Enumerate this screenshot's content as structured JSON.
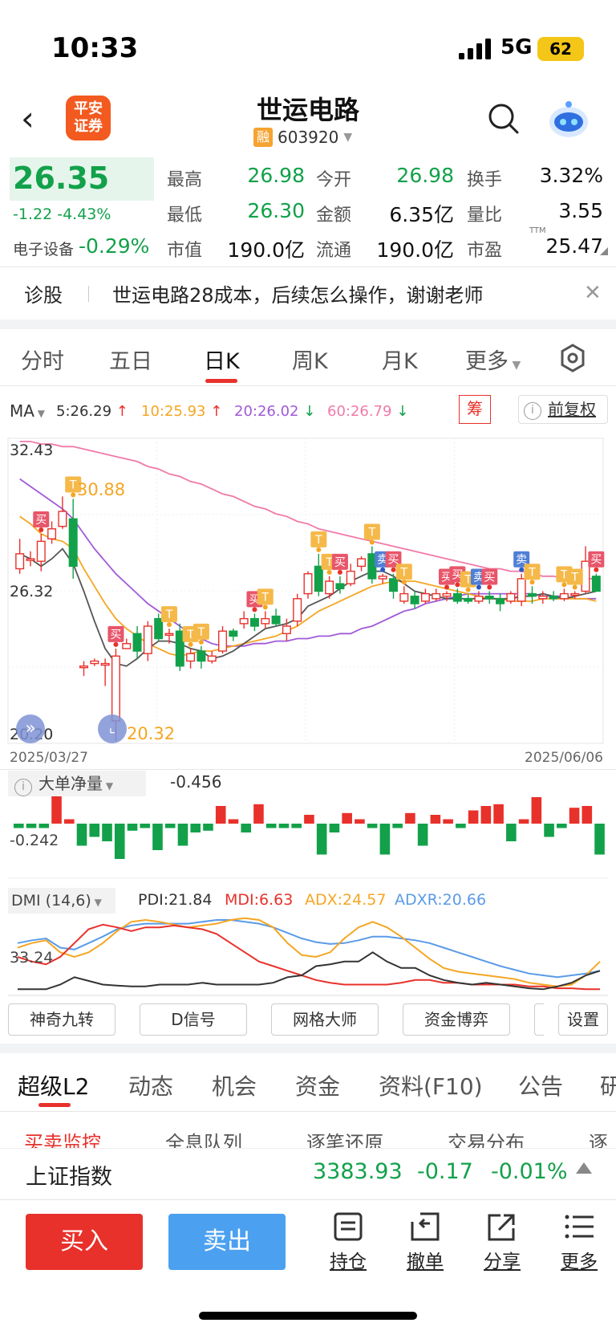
{
  "status": {
    "time": "10:33",
    "network": "5G",
    "battery": "62"
  },
  "header": {
    "broker_logo": "平安\n证券",
    "title": "世运电路",
    "rong": "融",
    "code": "603920"
  },
  "quote": {
    "price": "26.35",
    "change": "-1.22",
    "change_pct": "-4.43%",
    "sector_label": "电子设备",
    "sector_pct": "-0.29%",
    "fields": [
      {
        "label": "最高",
        "value": "26.98",
        "color": "green"
      },
      {
        "label": "今开",
        "value": "26.98",
        "color": "green"
      },
      {
        "label": "换手",
        "value": "3.32%",
        "color": "dark"
      },
      {
        "label": "最低",
        "value": "26.30",
        "color": "green"
      },
      {
        "label": "金额",
        "value": "6.35亿",
        "color": "dark"
      },
      {
        "label": "量比",
        "value": "3.55",
        "color": "dark"
      },
      {
        "label": "市值",
        "value": "190.0亿",
        "color": "dark"
      },
      {
        "label": "流通",
        "value": "190.0亿",
        "color": "dark"
      },
      {
        "label": "市盈",
        "value": "25.47",
        "color": "dark"
      }
    ],
    "ttm": "TTM"
  },
  "news": {
    "tag": "诊股",
    "text": "世运电路28成本，后续怎么操作，谢谢老师"
  },
  "tabs": [
    "分时",
    "五日",
    "日K",
    "周K",
    "月K",
    "更多"
  ],
  "ma": {
    "label": "MA",
    "items": [
      {
        "text": "5:26.29",
        "arrow": "↑",
        "color": "#333"
      },
      {
        "text": "10:25.93",
        "arrow": "↑",
        "color": "#f5a623"
      },
      {
        "text": "20:26.02",
        "arrow": "↓",
        "color": "#a05ad8"
      },
      {
        "text": "60:26.79",
        "arrow": "↓",
        "color": "#f07aa8"
      }
    ],
    "chou": "筹",
    "fq": "前复权"
  },
  "chart_data": {
    "type": "candlestick",
    "ymax": "32.43",
    "ymid": "26.32",
    "ymin": "20.20",
    "x_start": "2025/03/27",
    "x_end": "2025/06/06",
    "annotation_high": "30.88",
    "annotation_low": "20.32",
    "colors": {
      "up": "#e8312b",
      "down": "#12a14a"
    },
    "candles": [
      {
        "o": 27.2,
        "c": 27.8,
        "h": 28.4,
        "l": 27.0
      },
      {
        "o": 27.6,
        "c": 27.6,
        "h": 27.9,
        "l": 27.3
      },
      {
        "o": 27.5,
        "c": 28.3,
        "h": 28.6,
        "l": 27.1
      },
      {
        "o": 28.4,
        "c": 28.8,
        "h": 29.1,
        "l": 28.2
      },
      {
        "o": 28.9,
        "c": 29.5,
        "h": 30.1,
        "l": 28.8
      },
      {
        "o": 29.2,
        "c": 27.3,
        "h": 30.0,
        "l": 26.8
      },
      {
        "o": 23.3,
        "c": 23.3,
        "h": 23.5,
        "l": 22.9
      },
      {
        "o": 23.4,
        "c": 23.5,
        "h": 23.6,
        "l": 23.3
      },
      {
        "o": 23.4,
        "c": 23.4,
        "h": 23.6,
        "l": 22.5
      },
      {
        "o": 21.1,
        "c": 23.7,
        "h": 24.0,
        "l": 20.3
      },
      {
        "o": 24.0,
        "c": 24.2,
        "h": 24.4,
        "l": 24.0
      },
      {
        "o": 24.6,
        "c": 23.9,
        "h": 24.9,
        "l": 23.6
      },
      {
        "o": 23.8,
        "c": 24.9,
        "h": 25.1,
        "l": 23.5
      },
      {
        "o": 25.2,
        "c": 24.4,
        "h": 25.4,
        "l": 24.3
      },
      {
        "o": 24.6,
        "c": 24.6,
        "h": 24.8,
        "l": 24.2
      },
      {
        "o": 24.7,
        "c": 23.3,
        "h": 25.0,
        "l": 23.1
      },
      {
        "o": 23.5,
        "c": 23.8,
        "h": 24.0,
        "l": 23.2
      },
      {
        "o": 23.9,
        "c": 23.5,
        "h": 24.1,
        "l": 23.2
      },
      {
        "o": 23.5,
        "c": 23.7,
        "h": 23.9,
        "l": 23.4
      },
      {
        "o": 23.9,
        "c": 24.7,
        "h": 24.9,
        "l": 23.8
      },
      {
        "o": 24.7,
        "c": 24.5,
        "h": 24.8,
        "l": 24.3
      },
      {
        "o": 25.0,
        "c": 25.2,
        "h": 25.5,
        "l": 24.8
      },
      {
        "o": 25.2,
        "c": 24.9,
        "h": 25.4,
        "l": 24.7
      },
      {
        "o": 25.0,
        "c": 25.2,
        "h": 25.5,
        "l": 24.8
      },
      {
        "o": 25.3,
        "c": 25.0,
        "h": 25.6,
        "l": 24.9
      },
      {
        "o": 24.6,
        "c": 24.9,
        "h": 25.2,
        "l": 24.3
      },
      {
        "o": 25.1,
        "c": 26.0,
        "h": 26.2,
        "l": 24.9
      },
      {
        "o": 26.2,
        "c": 27.0,
        "h": 27.1,
        "l": 26.0
      },
      {
        "o": 27.3,
        "c": 26.3,
        "h": 27.8,
        "l": 26.1
      },
      {
        "o": 26.2,
        "c": 26.7,
        "h": 26.9,
        "l": 26.0
      },
      {
        "o": 26.6,
        "c": 26.4,
        "h": 26.9,
        "l": 26.2
      },
      {
        "o": 26.6,
        "c": 27.1,
        "h": 27.4,
        "l": 26.5
      },
      {
        "o": 27.3,
        "c": 27.6,
        "h": 27.7,
        "l": 27.1
      },
      {
        "o": 27.8,
        "c": 26.8,
        "h": 28.1,
        "l": 26.6
      },
      {
        "o": 26.8,
        "c": 26.9,
        "h": 27.0,
        "l": 26.6
      },
      {
        "o": 26.8,
        "c": 26.3,
        "h": 27.0,
        "l": 26.0
      },
      {
        "o": 25.9,
        "c": 26.2,
        "h": 26.5,
        "l": 25.8
      },
      {
        "o": 26.1,
        "c": 25.8,
        "h": 26.3,
        "l": 25.6
      },
      {
        "o": 25.9,
        "c": 26.2,
        "h": 26.4,
        "l": 25.8
      },
      {
        "o": 26.0,
        "c": 26.2,
        "h": 26.4,
        "l": 25.9
      },
      {
        "o": 26.1,
        "c": 26.2,
        "h": 26.3,
        "l": 25.9
      },
      {
        "o": 26.2,
        "c": 25.9,
        "h": 26.4,
        "l": 25.8
      },
      {
        "o": 26.0,
        "c": 25.9,
        "h": 26.2,
        "l": 25.8
      },
      {
        "o": 25.9,
        "c": 26.1,
        "h": 26.3,
        "l": 25.8
      },
      {
        "o": 26.1,
        "c": 26.0,
        "h": 26.3,
        "l": 25.8
      },
      {
        "o": 26.0,
        "c": 25.8,
        "h": 26.2,
        "l": 25.5
      },
      {
        "o": 25.9,
        "c": 26.2,
        "h": 26.3,
        "l": 25.8
      },
      {
        "o": 25.9,
        "c": 26.8,
        "h": 27.0,
        "l": 25.7
      },
      {
        "o": 26.2,
        "c": 26.1,
        "h": 26.5,
        "l": 25.8
      },
      {
        "o": 26.0,
        "c": 26.1,
        "h": 26.3,
        "l": 25.8
      },
      {
        "o": 26.1,
        "c": 26.0,
        "h": 26.3,
        "l": 25.9
      },
      {
        "o": 26.0,
        "c": 26.2,
        "h": 26.4,
        "l": 25.9
      },
      {
        "o": 26.2,
        "c": 26.2,
        "h": 26.3,
        "l": 26.0
      },
      {
        "o": 26.3,
        "c": 27.5,
        "h": 28.1,
        "l": 26.2
      },
      {
        "o": 26.9,
        "c": 26.3,
        "h": 27.0,
        "l": 26.3
      }
    ],
    "ma5": [
      27.8,
      27.6,
      27.3,
      27.6,
      28.0,
      27.4,
      26.3,
      25.1,
      24.0,
      23.4,
      23.3,
      23.6,
      24.0,
      24.3,
      24.3,
      24.2,
      24.0,
      23.9,
      23.6,
      23.7,
      23.9,
      24.2,
      24.5,
      24.8,
      24.9,
      25.0,
      25.2,
      25.7,
      25.9,
      26.1,
      26.4,
      26.7,
      26.9,
      27.1,
      27.1,
      26.9,
      26.6,
      26.3,
      26.2,
      26.1,
      26.0,
      26.0,
      26.0,
      26.0,
      26.0,
      26.0,
      26.0,
      26.1,
      26.1,
      26.2,
      26.1,
      26.0,
      26.1,
      26.2,
      26.3
    ],
    "ma10": [
      29.3,
      29.0,
      28.6,
      28.4,
      28.3,
      28.0,
      27.2,
      26.5,
      25.8,
      25.2,
      24.8,
      24.5,
      24.2,
      24.0,
      23.8,
      23.7,
      23.8,
      23.9,
      23.9,
      24.0,
      24.1,
      24.2,
      24.3,
      24.4,
      24.5,
      24.7,
      24.9,
      25.2,
      25.5,
      25.7,
      25.9,
      26.1,
      26.3,
      26.5,
      26.6,
      26.7,
      26.7,
      26.7,
      26.6,
      26.5,
      26.4,
      26.3,
      26.2,
      26.1,
      26.0,
      26.0,
      25.9,
      25.9,
      25.9,
      26.0,
      26.0,
      26.0,
      26.0,
      26.0,
      25.9
    ],
    "ma20": [
      30.8,
      30.5,
      30.2,
      29.9,
      29.6,
      29.2,
      28.6,
      28.0,
      27.5,
      27.0,
      26.6,
      26.2,
      25.8,
      25.5,
      25.2,
      24.9,
      24.6,
      24.4,
      24.2,
      24.1,
      24.1,
      24.1,
      24.2,
      24.2,
      24.3,
      24.3,
      24.4,
      24.4,
      24.5,
      24.5,
      24.6,
      24.6,
      24.8,
      24.9,
      25.1,
      25.3,
      25.5,
      25.6,
      25.8,
      25.9,
      26.0,
      26.1,
      26.2,
      26.2,
      26.2,
      26.2,
      26.2,
      26.2,
      26.2,
      26.1,
      26.1,
      26.1,
      26.0,
      26.0,
      26.0
    ],
    "ma60": [
      32.3,
      32.3,
      32.2,
      32.2,
      32.1,
      32.1,
      32.0,
      31.9,
      31.8,
      31.7,
      31.6,
      31.5,
      31.3,
      31.2,
      31.0,
      30.9,
      30.7,
      30.6,
      30.4,
      30.2,
      30.1,
      29.9,
      29.7,
      29.6,
      29.4,
      29.3,
      29.1,
      29.0,
      28.8,
      28.7,
      28.6,
      28.5,
      28.4,
      28.3,
      28.2,
      28.1,
      28.0,
      27.9,
      27.8,
      27.7,
      27.6,
      27.5,
      27.4,
      27.3,
      27.2,
      27.2,
      27.1,
      27.1,
      27.0,
      26.9,
      26.9,
      26.8,
      26.8,
      26.8,
      26.8
    ],
    "signals": [
      {
        "i": 2,
        "text": "买",
        "kind": "buy",
        "at": "above"
      },
      {
        "i": 5,
        "text": "T",
        "kind": "t",
        "at": "above"
      },
      {
        "i": 9,
        "text": "买",
        "kind": "buy",
        "at": "above"
      },
      {
        "i": 14,
        "text": "T",
        "kind": "t",
        "at": "above"
      },
      {
        "i": 16,
        "text": "T",
        "kind": "t",
        "at": "above"
      },
      {
        "i": 17,
        "text": "T",
        "kind": "t",
        "at": "above"
      },
      {
        "i": 22,
        "text": "买",
        "kind": "buy",
        "at": "above"
      },
      {
        "i": 23,
        "text": "T",
        "kind": "t",
        "at": "above"
      },
      {
        "i": 28,
        "text": "T",
        "kind": "t",
        "at": "above"
      },
      {
        "i": 29,
        "text": "T",
        "kind": "t",
        "at": "above"
      },
      {
        "i": 30,
        "text": "买",
        "kind": "buy",
        "at": "above"
      },
      {
        "i": 33,
        "text": "T",
        "kind": "t",
        "at": "above"
      },
      {
        "i": 34,
        "text": "卖",
        "kind": "sell",
        "at": "above"
      },
      {
        "i": 35,
        "text": "买",
        "kind": "buy",
        "at": "above"
      },
      {
        "i": 36,
        "text": "T",
        "kind": "t",
        "at": "above"
      },
      {
        "i": 40,
        "text": "买",
        "kind": "buy",
        "at": "above"
      },
      {
        "i": 41,
        "text": "买",
        "kind": "buy",
        "at": "above"
      },
      {
        "i": 42,
        "text": "T",
        "kind": "t",
        "at": "above"
      },
      {
        "i": 43,
        "text": "卖",
        "kind": "sell",
        "at": "above"
      },
      {
        "i": 44,
        "text": "买",
        "kind": "buy",
        "at": "above"
      },
      {
        "i": 47,
        "text": "卖",
        "kind": "sell",
        "at": "above"
      },
      {
        "i": 48,
        "text": "T",
        "kind": "t",
        "at": "above"
      },
      {
        "i": 51,
        "text": "T",
        "kind": "t",
        "at": "above"
      },
      {
        "i": 52,
        "text": "T",
        "kind": "t",
        "at": "above"
      },
      {
        "i": 54,
        "text": "买",
        "kind": "buy",
        "at": "above"
      }
    ]
  },
  "big_order": {
    "label": "大单净量",
    "value": "-0.456",
    "axis": "-0.242",
    "bars": [
      -0.05,
      -0.05,
      -0.05,
      0.34,
      0.05,
      -0.25,
      -0.15,
      -0.2,
      -0.4,
      -0.08,
      -0.05,
      -0.3,
      -0.05,
      -0.25,
      -0.1,
      -0.08,
      0.2,
      0.05,
      -0.1,
      0.22,
      -0.05,
      -0.05,
      -0.05,
      0.1,
      -0.35,
      -0.1,
      0.12,
      0.05,
      -0.05,
      -0.35,
      -0.05,
      0.12,
      -0.25,
      0.1,
      0.05,
      -0.05,
      0.15,
      0.2,
      0.22,
      -0.2,
      0.05,
      0.3,
      -0.15,
      -0.05,
      0.18,
      0.2,
      -0.35
    ]
  },
  "dmi": {
    "label": "DMI (14,6)",
    "pdi": "PDI:21.84",
    "mdi": "MDI:6.63",
    "adx": "ADX:24.57",
    "adxr": "ADXR:20.66",
    "axis": "33.24",
    "series": {
      "PDI": [
        5,
        5,
        5,
        10,
        18,
        14,
        10,
        9,
        8,
        8,
        10,
        10,
        10,
        12,
        10,
        10,
        10,
        10,
        12,
        18,
        20,
        30,
        32,
        35,
        35,
        45,
        35,
        28,
        28,
        20,
        15,
        12,
        10,
        12,
        10,
        8,
        6,
        5,
        8,
        12,
        20,
        25
      ],
      "MDI": [
        40,
        35,
        32,
        40,
        55,
        70,
        75,
        72,
        68,
        72,
        72,
        74,
        72,
        70,
        65,
        55,
        45,
        35,
        30,
        25,
        20,
        15,
        12,
        10,
        10,
        10,
        10,
        12,
        15,
        15,
        12,
        12,
        10,
        10,
        10,
        10,
        8,
        8,
        6,
        6,
        5,
        5
      ],
      "ADX": [
        50,
        55,
        58,
        45,
        40,
        45,
        55,
        68,
        78,
        80,
        78,
        75,
        72,
        74,
        76,
        80,
        82,
        80,
        72,
        55,
        42,
        40,
        45,
        60,
        72,
        78,
        72,
        62,
        50,
        38,
        28,
        24,
        22,
        20,
        18,
        16,
        12,
        10,
        8,
        10,
        20,
        35
      ],
      "ADXR": [
        55,
        58,
        60,
        50,
        48,
        55,
        62,
        70,
        74,
        76,
        76,
        76,
        76,
        78,
        80,
        80,
        78,
        76,
        72,
        66,
        60,
        56,
        54,
        55,
        58,
        62,
        62,
        60,
        58,
        55,
        50,
        45,
        40,
        35,
        30,
        26,
        22,
        20,
        18,
        20,
        22,
        25
      ]
    }
  },
  "indicator_buttons": [
    "神奇九转",
    "D信号",
    "网格大师",
    "资金博弈"
  ],
  "settings_label": "设置",
  "bottom_tabs": [
    "超级L2",
    "动态",
    "机会",
    "资金",
    "资料(F10)",
    "公告",
    "研"
  ],
  "sub_tabs": [
    "买卖监控",
    "全息队列",
    "逐笔还原",
    "交易分布",
    "逐笔"
  ],
  "index_bar": {
    "name": "上证指数",
    "value": "3383.93",
    "change": "-0.17",
    "pct": "-0.01%"
  },
  "actions": {
    "buy": "买入",
    "sell": "卖出",
    "hold": "持仓",
    "cancel": "撤单",
    "share": "分享",
    "more": "更多"
  }
}
